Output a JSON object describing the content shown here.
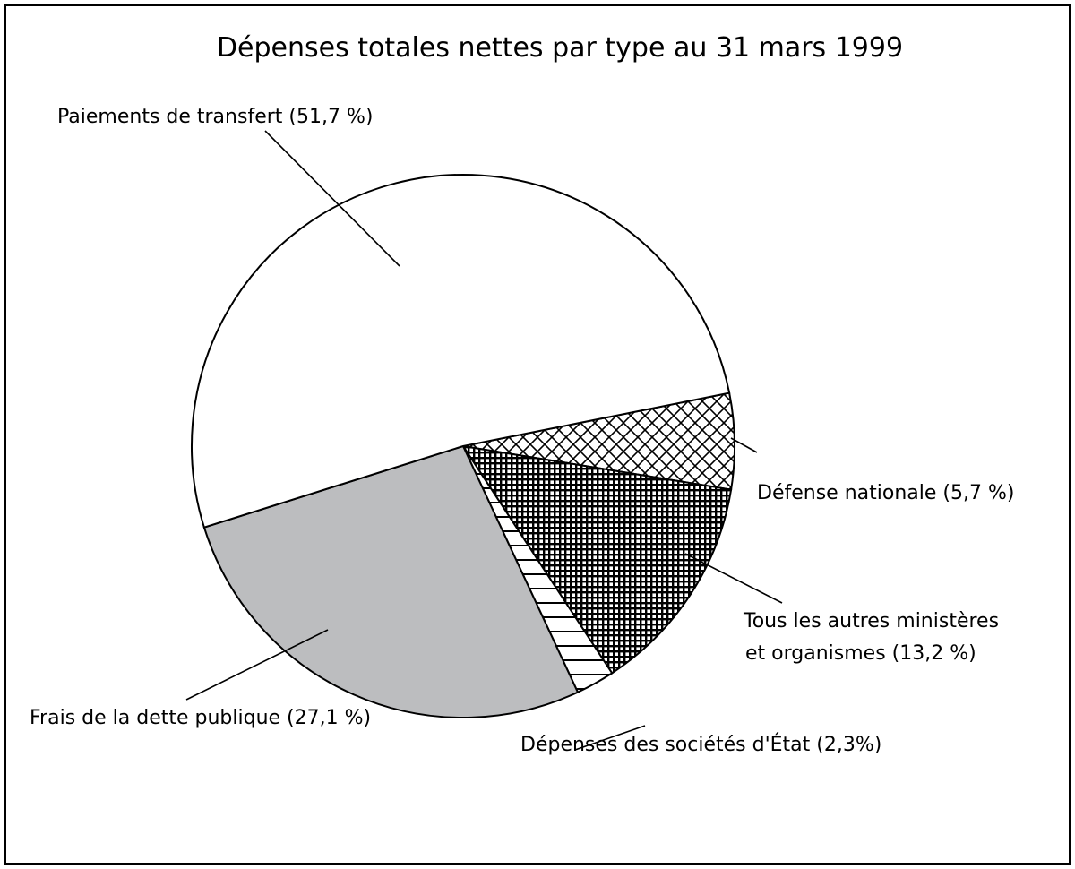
{
  "chart_data": {
    "type": "pie",
    "title": "Dépenses totales nettes par type au 31 mars 1999",
    "slices": [
      {
        "key": "defense",
        "label": "Défense nationale (5,7 %)",
        "value": 5.7,
        "fill": "crosshatch-diagonal",
        "color": "#ffffff"
      },
      {
        "key": "autres",
        "label_lines": [
          "Tous les autres ministères",
          "et organismes (13,2 %)"
        ],
        "value": 13.2,
        "fill": "grid-dense",
        "color": "#000000"
      },
      {
        "key": "societes",
        "label": "Dépenses des sociétés d'État (2,3%)",
        "value": 2.3,
        "fill": "horizontal-stripes",
        "color": "#ffffff"
      },
      {
        "key": "dette",
        "label": "Frais de la dette publique (27,1 %)",
        "value": 27.1,
        "fill": "solid",
        "color": "#bcbdbf"
      },
      {
        "key": "transfert",
        "label": "Paiements de transfert (51,7 %)",
        "value": 51.7,
        "fill": "solid",
        "color": "#ffffff"
      }
    ]
  }
}
